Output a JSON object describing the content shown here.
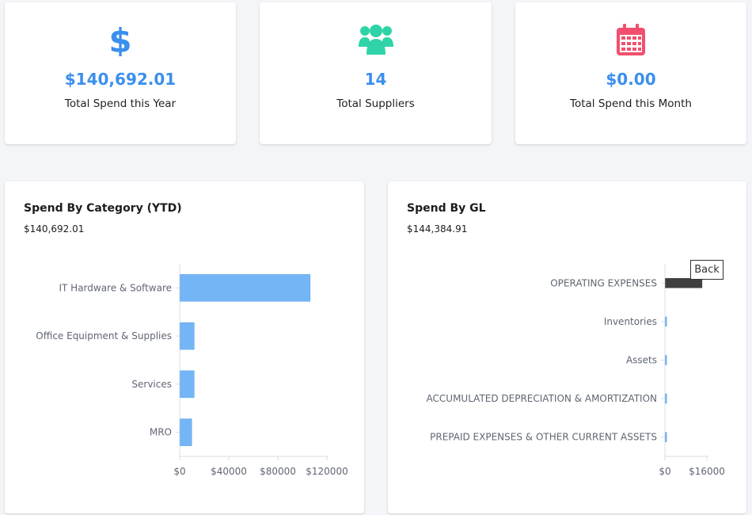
{
  "stats": [
    {
      "value": "$140,692.01",
      "label": "Total Spend this Year",
      "icon": "dollar-icon",
      "color": "#3b8fed"
    },
    {
      "value": "14",
      "label": "Total Suppliers",
      "icon": "users-icon",
      "color": "#2fd3a7"
    },
    {
      "value": "$0.00",
      "label": "Total Spend this Month",
      "icon": "calendar-icon",
      "color": "#f0506e"
    }
  ],
  "category_chart": {
    "title": "Spend By Category (YTD)",
    "total": "$140,692.01"
  },
  "gl_chart": {
    "title": "Spend By GL",
    "total": "$144,384.91",
    "back_label": "Back"
  },
  "chart_data": [
    {
      "type": "bar",
      "orientation": "horizontal",
      "title": "Spend By Category (YTD)",
      "categories": [
        "IT Hardware & Software",
        "Office Equipment & Supplies",
        "Services",
        "MRO"
      ],
      "values": [
        106000,
        11500,
        11500,
        9500
      ],
      "tick_labels": [
        "$0",
        "$40000",
        "$80000",
        "$120000"
      ],
      "xlim": [
        0,
        120000
      ],
      "bar_color": "#74b5f5",
      "grid": false
    },
    {
      "type": "bar",
      "orientation": "horizontal",
      "title": "Spend By GL",
      "categories": [
        "OPERATING EXPENSES",
        "Inventories",
        "Assets",
        "ACCUMULATED DEPRECIATION & AMORTIZATION",
        "PREPAID EXPENSES & OTHER CURRENT ASSETS"
      ],
      "values": [
        14000,
        500,
        500,
        500,
        500
      ],
      "tick_labels": [
        "$0",
        "$16000"
      ],
      "xlim": [
        0,
        16000
      ],
      "highlight_color": "#3f3f3f",
      "bar_color": "#74b5f5",
      "grid": false
    }
  ]
}
